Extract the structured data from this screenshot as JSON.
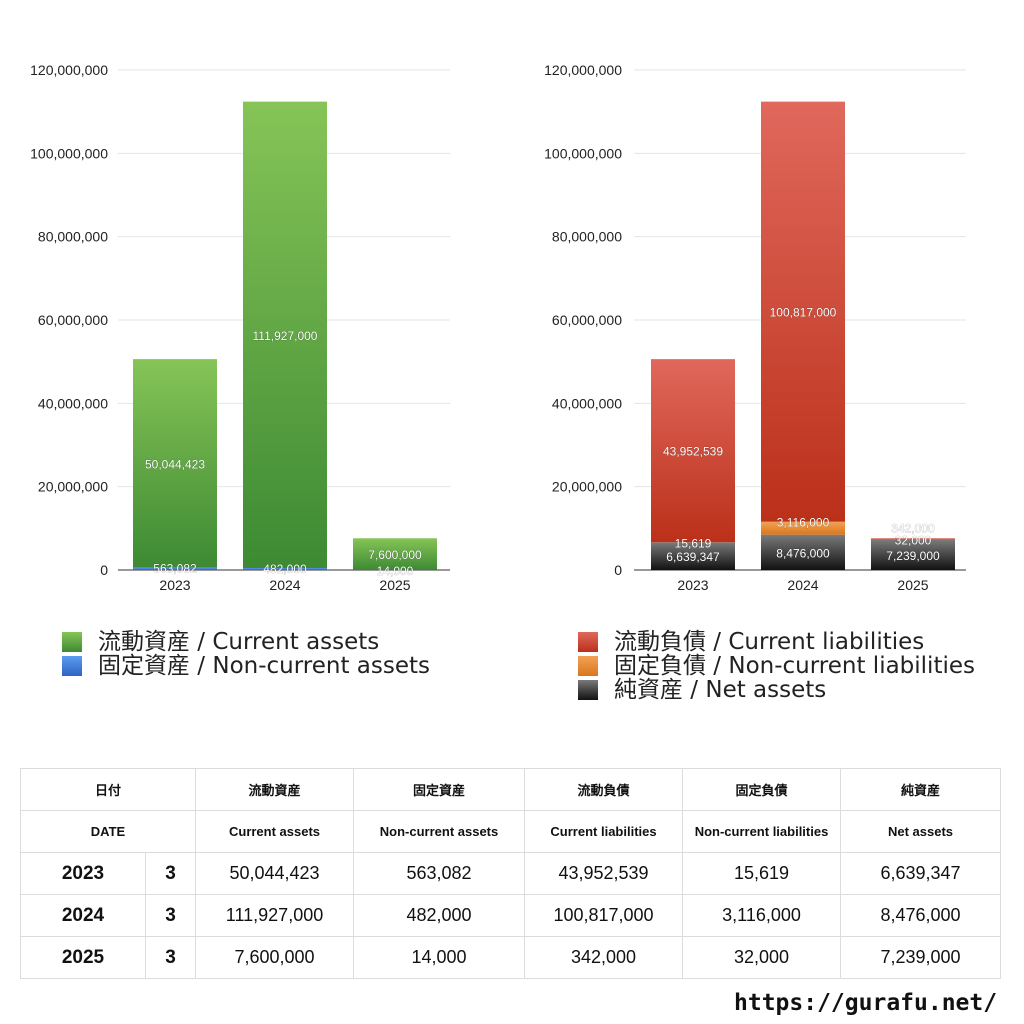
{
  "colors": {
    "current_assets": [
      "#86c457",
      "#3d8a33"
    ],
    "non_current_assets": [
      "#5b9cf0",
      "#2e64c2"
    ],
    "current_liabilities": [
      "#e0685c",
      "#bb3019"
    ],
    "non_current_liabilities": [
      "#f2a256",
      "#d9761e"
    ],
    "net_assets": [
      "#7a7a7a",
      "#111111"
    ]
  },
  "chart_data": [
    {
      "type": "bar",
      "stacked": true,
      "categories": [
        "2023",
        "2024",
        "2025"
      ],
      "ylim": [
        0,
        120000000
      ],
      "yticks": [
        "0",
        "20,000,000",
        "40,000,000",
        "60,000,000",
        "80,000,000",
        "100,000,000",
        "120,000,000"
      ],
      "series": [
        {
          "key": "non_current_assets",
          "values": [
            563082,
            482000,
            14000
          ],
          "labels": [
            "563,082",
            "482,000",
            "14,000"
          ]
        },
        {
          "key": "current_assets",
          "values": [
            50044423,
            111927000,
            7600000
          ],
          "labels": [
            "50,044,423",
            "111,927,000",
            "7,600,000"
          ]
        }
      ],
      "legend": {
        "placement": "bottom",
        "entries": [
          {
            "key": "current_assets",
            "label": "流動資産 / Current assets"
          },
          {
            "key": "non_current_assets",
            "label": "固定資産 / Non-current assets"
          }
        ]
      }
    },
    {
      "type": "bar",
      "stacked": true,
      "categories": [
        "2023",
        "2024",
        "2025"
      ],
      "ylim": [
        0,
        120000000
      ],
      "yticks": [
        "0",
        "20,000,000",
        "40,000,000",
        "60,000,000",
        "80,000,000",
        "100,000,000",
        "120,000,000"
      ],
      "series": [
        {
          "key": "net_assets",
          "values": [
            6639347,
            8476000,
            7239000
          ],
          "labels": [
            "6,639,347",
            "8,476,000",
            "7,239,000"
          ]
        },
        {
          "key": "non_current_liabilities",
          "values": [
            15619,
            3116000,
            32000
          ],
          "labels": [
            "15,619",
            "3,116,000",
            "32,000"
          ]
        },
        {
          "key": "current_liabilities",
          "values": [
            43952539,
            100817000,
            342000
          ],
          "labels": [
            "43,952,539",
            "100,817,000",
            "342,000"
          ]
        }
      ],
      "legend": {
        "placement": "bottom",
        "entries": [
          {
            "key": "current_liabilities",
            "label": "流動負債 / Current liabilities"
          },
          {
            "key": "non_current_liabilities",
            "label": "固定負債 / Non-current liabilities"
          },
          {
            "key": "net_assets",
            "label": "純資産 / Net assets"
          }
        ]
      }
    }
  ],
  "table": {
    "header_jp": [
      "日付",
      "",
      "流動資産",
      "固定資産",
      "流動負債",
      "固定負債",
      "純資産"
    ],
    "header_en": [
      "DATE",
      "",
      "Current assets",
      "Non-current assets",
      "Current liabilities",
      "Non-current liabilities",
      "Net assets"
    ],
    "rows": [
      {
        "year": "2023",
        "month": "3",
        "values": [
          "50,044,423",
          "563,082",
          "43,952,539",
          "15,619",
          "6,639,347"
        ]
      },
      {
        "year": "2024",
        "month": "3",
        "values": [
          "111,927,000",
          "482,000",
          "100,817,000",
          "3,116,000",
          "8,476,000"
        ]
      },
      {
        "year": "2025",
        "month": "3",
        "values": [
          "7,600,000",
          "14,000",
          "342,000",
          "32,000",
          "7,239,000"
        ]
      }
    ]
  },
  "footer": {
    "url": "https://gurafu.net/"
  }
}
